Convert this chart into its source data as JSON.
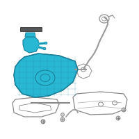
{
  "bg_color": "#ffffff",
  "figsize": [
    2.0,
    2.0
  ],
  "dpi": 100,
  "tank_color": "#29b8d4",
  "tank_edge": "#1a8099",
  "pump_color": "#29b8d4",
  "pump_edge": "#1a8099",
  "line_color": "#999999",
  "line_edge": "#777777",
  "strip_color": "#555555",
  "brk_color": "#aaaaaa",
  "brk_edge": "#888888"
}
